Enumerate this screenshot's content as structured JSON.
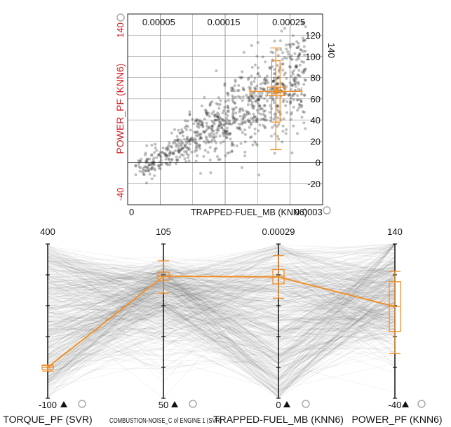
{
  "accent_color": "#f0902a",
  "red_color": "#d4252a",
  "chart_data": [
    {
      "type": "scatter",
      "xlabel": "TRAPPED-FUEL_MB (KNN6)",
      "ylabel": "POWER_PF (KNN6)",
      "xlim": [
        0,
        0.0003
      ],
      "ylim": [
        -40,
        140
      ],
      "x_range_labels": [
        "0",
        "0.0003"
      ],
      "y_range_labels": [
        "-40",
        "140"
      ],
      "x_ticks": [
        5e-05,
        0.00015,
        0.00025
      ],
      "x_tick_labels": [
        "0.00005",
        "0.00015",
        "0.00025"
      ],
      "y_ticks": [
        120,
        100,
        80,
        60,
        40,
        20,
        0,
        -20
      ],
      "y_tick_labels": [
        "120",
        "100",
        "80",
        "60",
        "40",
        "20",
        "0",
        "-20"
      ],
      "y_top_partial_label": "140",
      "summary": {
        "mean_x": 0.000228,
        "mean_y": 67,
        "box_x": [
          0.000215,
          0.000242
        ],
        "whisker_x": [
          0.000188,
          0.000268
        ],
        "box_y": [
          38,
          96
        ],
        "whisker_y": [
          12,
          108
        ]
      },
      "point_count": 900
    },
    {
      "type": "parallel_coordinates",
      "axes": [
        {
          "name": "TORQUE_PF (SVR)",
          "min": -100,
          "max": 400,
          "min_label": "-100",
          "max_label": "400",
          "mean": 0,
          "box": [
            -6,
            6
          ],
          "whisker": [
            -12,
            8
          ]
        },
        {
          "name": "COMBUSTION-NOISE_C of ENGINE 1 (SVR)",
          "min": 50,
          "max": 105,
          "min_label": "50",
          "max_label": "105",
          "mean": 93.5,
          "box": [
            92,
            95
          ],
          "whisker": [
            87.5,
            99
          ]
        },
        {
          "name": "TRAPPED-FUEL_MB (KNN6)",
          "min": 0,
          "max": 0.00029,
          "min_label": "0",
          "max_label": "0.00029",
          "mean": 0.000228,
          "box": [
            0.000215,
            0.000242
          ],
          "whisker": [
            0.000188,
            0.000268
          ]
        },
        {
          "name": "POWER_PF (KNN6)",
          "min": -40,
          "max": 140,
          "min_label": "-40",
          "max_label": "140",
          "mean": 67,
          "box": [
            38,
            96
          ],
          "whisker": [
            12,
            108
          ]
        }
      ],
      "line_count": 420
    }
  ]
}
